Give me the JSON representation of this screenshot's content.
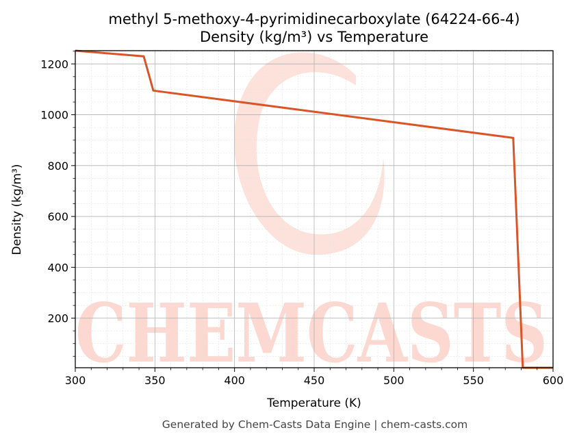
{
  "chart_data": {
    "type": "line",
    "title": "methyl 5-methoxy-4-pyrimidinecarboxylate (64224-66-4)",
    "subtitle": "Density (kg/m³) vs Temperature",
    "xlabel": "Temperature (K)",
    "ylabel": "Density (kg/m³)",
    "xlim": [
      300,
      600
    ],
    "ylim": [
      5,
      1252
    ],
    "xticks": [
      300,
      350,
      400,
      450,
      500,
      550,
      600
    ],
    "yticks": [
      200,
      400,
      600,
      800,
      1000,
      1200
    ],
    "grid": true,
    "series": [
      {
        "color": "#d95427",
        "x": [
          300,
          343,
          349,
          575,
          581,
          600
        ],
        "y": [
          1252,
          1230,
          1095,
          909,
          5,
          5
        ]
      }
    ]
  },
  "watermark": {
    "text": "CHEMCASTS",
    "color": "#fdd8d0"
  },
  "footer": "Generated by Chem-Casts Data Engine | chem-casts.com"
}
